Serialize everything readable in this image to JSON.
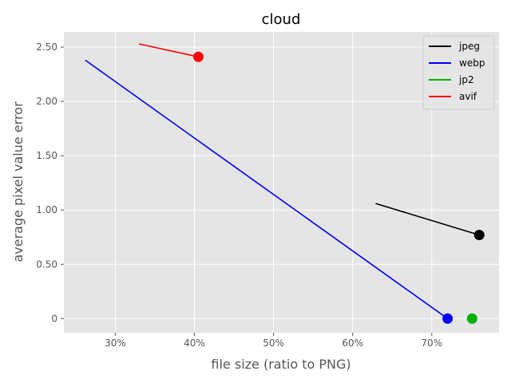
{
  "chart_data": {
    "type": "line",
    "title": "cloud",
    "xlabel": "file size (ratio to PNG)",
    "ylabel": "average pixel value error",
    "xlim": [
      0.235,
      0.785
    ],
    "ylim": [
      -0.13,
      2.64
    ],
    "x_ticks": [
      0.3,
      0.4,
      0.5,
      0.6,
      0.7
    ],
    "x_tick_labels": [
      "30%",
      "40%",
      "50%",
      "60%",
      "70%"
    ],
    "y_ticks": [
      0,
      0.5,
      1.0,
      1.5,
      2.0,
      2.5
    ],
    "y_tick_labels": [
      "0",
      "0.50",
      "1.00",
      "1.50",
      "2.00",
      "2.50"
    ],
    "grid": true,
    "legend_position": "top-right",
    "series": [
      {
        "name": "jpeg",
        "color": "#000000",
        "x": [
          0.629,
          0.76
        ],
        "y": [
          1.06,
          0.77
        ],
        "marker": {
          "x": 0.76,
          "y": 0.77
        }
      },
      {
        "name": "webp",
        "color": "#0000ff",
        "x": [
          0.262,
          0.72
        ],
        "y": [
          2.38,
          0.0
        ],
        "marker": {
          "x": 0.72,
          "y": 0.0
        }
      },
      {
        "name": "jp2",
        "color": "#00b000",
        "x": [
          0.751,
          0.751
        ],
        "y": [
          0.0,
          0.0
        ],
        "marker": {
          "x": 0.751,
          "y": 0.0
        }
      },
      {
        "name": "avif",
        "color": "#ff0000",
        "x": [
          0.33,
          0.405
        ],
        "y": [
          2.53,
          2.41
        ],
        "marker": {
          "x": 0.405,
          "y": 2.41
        }
      }
    ]
  }
}
